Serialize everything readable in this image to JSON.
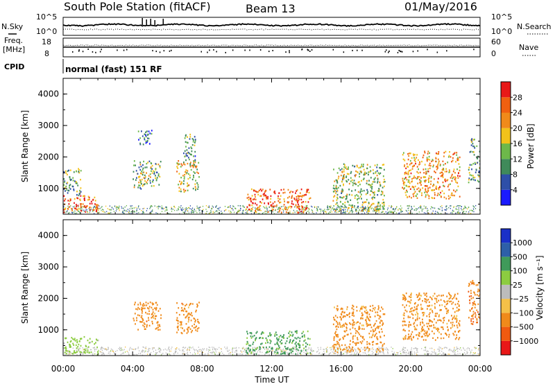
{
  "header": {
    "station": "South Pole Station (fitACF)",
    "beam": "Beam 13",
    "date": "01/May/2016"
  },
  "panels": {
    "noise_left_label": "N.Sky",
    "noise_left_ticks": [
      "10^5",
      "10^0"
    ],
    "noise_right_label": "N.Search",
    "noise_right_ticks": [
      "10^5",
      "10^0"
    ],
    "freq_left_label_1": "Freq.",
    "freq_left_label_2": "[MHz]",
    "freq_left_ticks": [
      "18",
      "8"
    ],
    "freq_right_label": "Nave",
    "freq_right_ticks": [
      "60",
      "0"
    ],
    "cpid_label": "CPID",
    "cpid_text": "normal (fast) 151 RF"
  },
  "colors": {
    "power": [
      "#1a1aff",
      "#2e4fa8",
      "#3f8a5a",
      "#6db84a",
      "#f2c21a",
      "#f08a1a",
      "#f06010",
      "#e81818"
    ],
    "velocity": [
      "#e81818",
      "#f05a10",
      "#f08a1a",
      "#f4c048",
      "#bcbcbc",
      "#8ccc40",
      "#3f9a5a",
      "#2e5fa8",
      "#1a30c8"
    ]
  },
  "chart_data": [
    {
      "type": "heatmap",
      "quantity": "Power",
      "xlabel": "Time UT",
      "ylabel": "Slant Range [km]",
      "colorbar_label": "Power [dB]",
      "colorbar_ticks": [
        "28",
        "24",
        "20",
        "16",
        "12",
        "8",
        "4"
      ],
      "x_ticks": [
        "00:00",
        "04:00",
        "08:00",
        "12:00",
        "16:00",
        "20:00",
        "00:00"
      ],
      "y_ticks": [
        "4000",
        "3000",
        "2000",
        "1000"
      ],
      "xlim_hours": [
        0,
        24
      ],
      "ylim_km": [
        180,
        4500
      ],
      "echo_regions": [
        {
          "t0": 0.0,
          "t1": 2.0,
          "r0": 250,
          "r1": 800,
          "value": 26
        },
        {
          "t0": 0.0,
          "t1": 1.0,
          "r0": 800,
          "r1": 1700,
          "value": 12
        },
        {
          "t0": 4.0,
          "t1": 5.6,
          "r0": 1000,
          "r1": 1900,
          "value": 14
        },
        {
          "t0": 4.3,
          "t1": 5.1,
          "r0": 2400,
          "r1": 2900,
          "value": 8
        },
        {
          "t0": 6.5,
          "t1": 7.8,
          "r0": 900,
          "r1": 1900,
          "value": 17
        },
        {
          "t0": 6.9,
          "t1": 7.6,
          "r0": 1900,
          "r1": 2800,
          "value": 10
        },
        {
          "t0": 10.5,
          "t1": 14.2,
          "r0": 250,
          "r1": 1000,
          "value": 26
        },
        {
          "t0": 15.5,
          "t1": 18.5,
          "r0": 300,
          "r1": 1800,
          "value": 15
        },
        {
          "t0": 19.5,
          "t1": 22.8,
          "r0": 700,
          "r1": 2200,
          "value": 21
        },
        {
          "t0": 23.3,
          "t1": 24.0,
          "r0": 1200,
          "r1": 2600,
          "value": 12
        }
      ]
    },
    {
      "type": "heatmap",
      "quantity": "Velocity",
      "xlabel": "Time UT",
      "ylabel": "Slant Range [km]",
      "colorbar_label": "Velocity [m s⁻¹]",
      "colorbar_ticks": [
        "1000",
        "500",
        "100",
        "25",
        "−25",
        "−100",
        "−500",
        "−1000"
      ],
      "x_ticks": [
        "00:00",
        "04:00",
        "08:00",
        "12:00",
        "16:00",
        "20:00",
        "00:00"
      ],
      "y_ticks": [
        "4000",
        "3000",
        "2000",
        "1000"
      ],
      "xlim_hours": [
        0,
        24
      ],
      "ylim_km": [
        180,
        4500
      ],
      "echo_regions": [
        {
          "t0": 0.0,
          "t1": 2.0,
          "r0": 250,
          "r1": 800,
          "value": 60
        },
        {
          "t0": 4.0,
          "t1": 5.6,
          "r0": 1000,
          "r1": 1900,
          "value": -300
        },
        {
          "t0": 6.5,
          "t1": 7.8,
          "r0": 900,
          "r1": 1900,
          "value": -300
        },
        {
          "t0": 10.5,
          "t1": 14.2,
          "r0": 250,
          "r1": 1000,
          "value": 150
        },
        {
          "t0": 15.5,
          "t1": 18.5,
          "r0": 300,
          "r1": 1800,
          "value": -250
        },
        {
          "t0": 19.5,
          "t1": 22.8,
          "r0": 700,
          "r1": 2200,
          "value": -200
        },
        {
          "t0": 23.3,
          "t1": 24.0,
          "r0": 1200,
          "r1": 2600,
          "value": -400
        }
      ]
    }
  ]
}
